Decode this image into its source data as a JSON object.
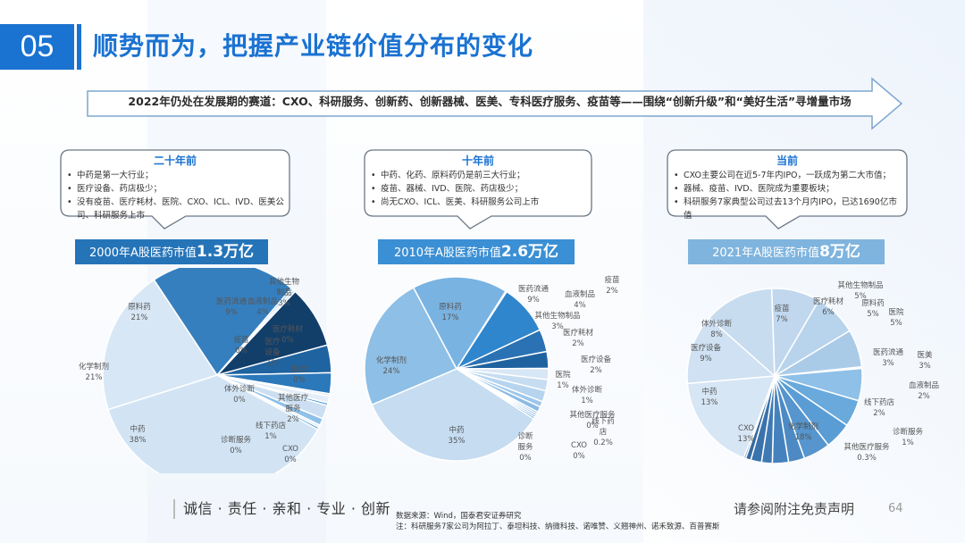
{
  "header": {
    "section_number": "05",
    "title": "顺势而为，把握产业链价值分布的变化",
    "accent_color": "#1a72d1"
  },
  "banner": {
    "text": "2022年仍处在发展期的赛道：CXO、科研服务、创新药、创新器械、医美、专科医疗服务、疫苗等——围绕“创新升级”和“美好生活”寻增量市场"
  },
  "periods": [
    {
      "heading": "二十年前",
      "bullets": [
        "中药是第一大行业；",
        "医疗设备、药店极少；",
        "没有疫苗、医疗耗材、医院、CXO、ICL、IVD、医美公司、科研服务上市"
      ],
      "market_value_prefix": "2000年A股医药市值",
      "market_value_amount": "1.3万亿",
      "bar_color": "#2574b8"
    },
    {
      "heading": "十年前",
      "bullets": [
        "中药、化药、原料药仍是前三大行业；",
        "疫苗、器械、IVD、医院、药店极少；",
        "尚无CXO、ICL、医美、科研服务公司上市"
      ],
      "market_value_prefix": "2010年A股医药市值",
      "market_value_amount": "2.6万亿",
      "bar_color": "#3b8fd4"
    },
    {
      "heading": "当前",
      "bullets": [
        "CXO主要公司在近5-7年内IPO，一跃成为第二大市值；",
        "器械、疫苗、IVD、医院成为重要板块；",
        "科研服务7家典型公司过去13个月内IPO，已达1690亿市值"
      ],
      "market_value_prefix": "2021年A股医药市值",
      "market_value_amount": "8万亿",
      "bar_color": "#7fb4de"
    }
  ],
  "chart_data": [
    {
      "type": "pie",
      "title": "2000年A股医药市值1.3万亿",
      "categories": [
        "医药流通",
        "血液制品",
        "其他生物制品",
        "医疗耗材",
        "医疗设备",
        "医院",
        "其他医疗服务",
        "线下药店",
        "CXO",
        "诊断服务",
        "中药",
        "化学制剂",
        "原料药",
        "疫苗",
        "体外诊断"
      ],
      "values": [
        9,
        4,
        3,
        0,
        1,
        0,
        2,
        1,
        0,
        0,
        38,
        21,
        21,
        0,
        0
      ],
      "labels": [
        "医药流通\n9%",
        "血液制品\n4%",
        "其他生物\n制品\n3%",
        "医疗耗材\n0%",
        "医疗\n设备\n1%",
        "医院\n0%",
        "其他医疗\n服务\n2%",
        "线下药店\n1%",
        "CXO\n0%",
        "诊断服务\n0%",
        "中药\n38%",
        "化学制剂\n21%",
        "原料药\n21%",
        "疫苗\n0%",
        "体外诊断\n0%"
      ]
    },
    {
      "type": "pie",
      "title": "2010年A股医药市值2.6万亿",
      "categories": [
        "医药流通",
        "血液制品",
        "其他生物制品",
        "疫苗",
        "医疗耗材",
        "医疗设备",
        "医院",
        "体外诊断",
        "其他医疗服务",
        "线下药店",
        "CXO",
        "诊断服务",
        "中药",
        "化学制剂",
        "原料药"
      ],
      "values": [
        9,
        4,
        3,
        2,
        2,
        2,
        1,
        1,
        0,
        0.2,
        0,
        0,
        35,
        24,
        17
      ],
      "labels": [
        "医药流通\n9%",
        "血液制品\n4%",
        "其他生物制品\n3%",
        "疫苗\n2%",
        "医疗耗材\n2%",
        "医疗设备\n2%",
        "医院\n1%",
        "体外诊断\n1%",
        "其他医疗服务\n0%",
        "线下药\n店\n0.2%",
        "CXO\n0%",
        "诊断\n服务\n0%",
        "中药\n35%",
        "化学制剂\n24%",
        "原料药\n17%"
      ]
    },
    {
      "type": "pie",
      "title": "2021年A股医药市值8万亿",
      "categories": [
        "医疗耗材",
        "其他生物制品",
        "原料药",
        "医院",
        "医药流通",
        "医美",
        "血液制品",
        "线下药店",
        "诊断服务",
        "其他医疗服务",
        "化学制剂",
        "CXO",
        "中药",
        "医疗设备",
        "体外诊断",
        "疫苗"
      ],
      "values": [
        6,
        5,
        5,
        5,
        3,
        3,
        2,
        2,
        1,
        0.3,
        18,
        13,
        13,
        9,
        8,
        7
      ],
      "labels": [
        "医疗耗材\n6%",
        "其他生物制品\n5%",
        "原料药\n5%",
        "医院\n5%",
        "医药流通\n3%",
        "医美\n3%",
        "血液制品\n2%",
        "线下药店\n2%",
        "诊断服务\n1%",
        "其他医疗服务\n0.3%",
        "化学制剂\n18%",
        "CXO\n13%",
        "中药\n13%",
        "医疗设备\n9%",
        "体外诊断\n8%",
        "疫苗\n7%"
      ]
    }
  ],
  "footer": {
    "slogan": "诚信 · 责任 · 亲和 · 专业 · 创新",
    "source_line": "数据来源：Wind，国泰君安证券研究",
    "note_line": "注：科研服务7家公司为阿拉丁、泰坦科技、纳微科技、诺唯赞、义翘神州、诺禾致源、百普赛斯",
    "disclaimer": "请参阅附注免责声明",
    "page_number": "64"
  }
}
